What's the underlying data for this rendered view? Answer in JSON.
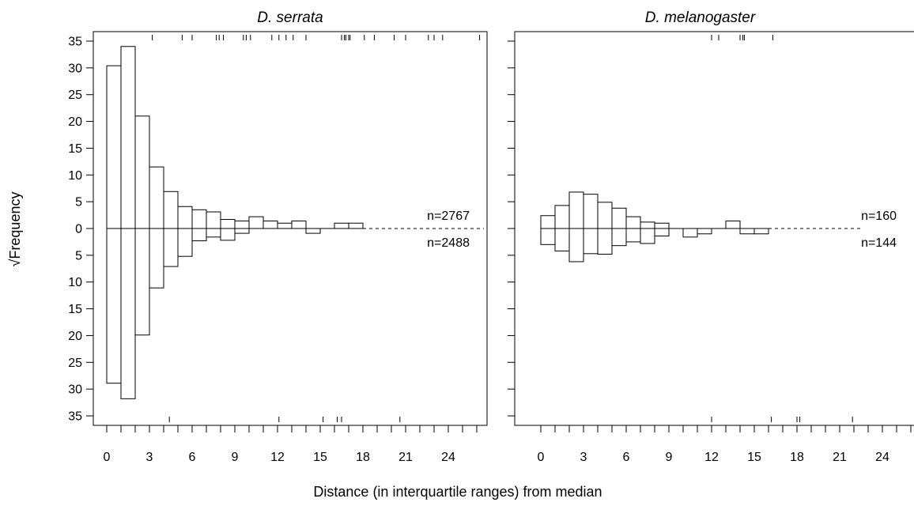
{
  "figure": {
    "xlabel": "Distance (in interquartile ranges) from median",
    "ylabel": "Frequency",
    "ylabel_prefix": "√"
  },
  "chart_data": [
    {
      "type": "bar",
      "subtype": "back-to-back histogram (sqrt frequency, upper and lower halves)",
      "title": "D. serrata",
      "xlabel": "Distance (in interquartile ranges) from median",
      "ylabel": "√Frequency",
      "xlim": [
        -0.5,
        27
      ],
      "ylim": [
        -35,
        35
      ],
      "xticks": [
        0,
        3,
        6,
        9,
        12,
        15,
        18,
        21,
        24
      ],
      "yticks": [
        35,
        30,
        25,
        20,
        15,
        10,
        5,
        0,
        5,
        10,
        15,
        20,
        25,
        30,
        35
      ],
      "bin_width": 1,
      "bins_start": [
        0,
        1,
        2,
        3,
        4,
        5,
        6,
        7,
        8,
        9,
        10,
        11,
        12,
        13,
        14,
        15,
        16,
        17
      ],
      "series": [
        {
          "name": "n=2767",
          "side": "upper",
          "values": [
            30.4,
            34.0,
            21.0,
            11.5,
            6.9,
            4.1,
            3.5,
            3.1,
            1.7,
            1.4,
            2.2,
            1.4,
            1.0,
            1.4,
            0,
            0,
            1.0,
            1.0
          ]
        },
        {
          "name": "n=2488",
          "side": "lower",
          "values": [
            28.9,
            31.8,
            19.9,
            11.1,
            7.1,
            5.2,
            2.3,
            1.6,
            2.2,
            0.9,
            0,
            0,
            0,
            0,
            0.9,
            0,
            0,
            0
          ]
        }
      ],
      "baseline_solid_to": 18,
      "baseline_dashed_to": 26.5,
      "rug_upper": [
        3.2,
        5.3,
        6.0,
        7.7,
        7.9,
        8.2,
        9.6,
        9.8,
        10.1,
        11.6,
        12.1,
        12.6,
        13.1,
        14.0,
        16.5,
        16.7,
        16.8,
        17.0,
        17.1,
        18.1,
        18.8,
        20.2,
        21.0,
        22.6,
        23.0,
        23.6,
        26.2
      ],
      "rug_lower": [
        4.4,
        12.1,
        15.2,
        16.2,
        16.5,
        20.6
      ]
    },
    {
      "type": "bar",
      "subtype": "back-to-back histogram (sqrt frequency, upper and lower halves)",
      "title": "D. melanogaster",
      "xlabel": "Distance (in interquartile ranges) from median",
      "ylabel": "√Frequency",
      "xlim": [
        -0.5,
        27
      ],
      "ylim": [
        -35,
        35
      ],
      "xticks": [
        0,
        3,
        6,
        9,
        12,
        15,
        18,
        21,
        24
      ],
      "bin_width": 1,
      "bins_start": [
        0,
        1,
        2,
        3,
        4,
        5,
        6,
        7,
        8,
        9,
        10,
        11,
        12,
        13,
        14,
        15
      ],
      "series": [
        {
          "name": "n=160",
          "side": "upper",
          "values": [
            2.4,
            4.3,
            6.8,
            6.4,
            4.9,
            3.8,
            2.2,
            1.2,
            1.0,
            0,
            0,
            0,
            0,
            1.4,
            0,
            0
          ]
        },
        {
          "name": "n=144",
          "side": "lower",
          "values": [
            3.0,
            4.2,
            6.2,
            4.7,
            4.8,
            3.2,
            2.5,
            2.8,
            1.4,
            0,
            1.6,
            1.0,
            0,
            0,
            1.0,
            1.0
          ]
        }
      ],
      "baseline_solid_to": 16,
      "baseline_dashed_to": 22.5,
      "rug_upper": [
        12.0,
        12.5,
        14.0,
        14.2,
        14.3,
        16.3
      ],
      "rug_lower": [
        12.0,
        16.2,
        18.0,
        18.2,
        21.9
      ]
    }
  ]
}
